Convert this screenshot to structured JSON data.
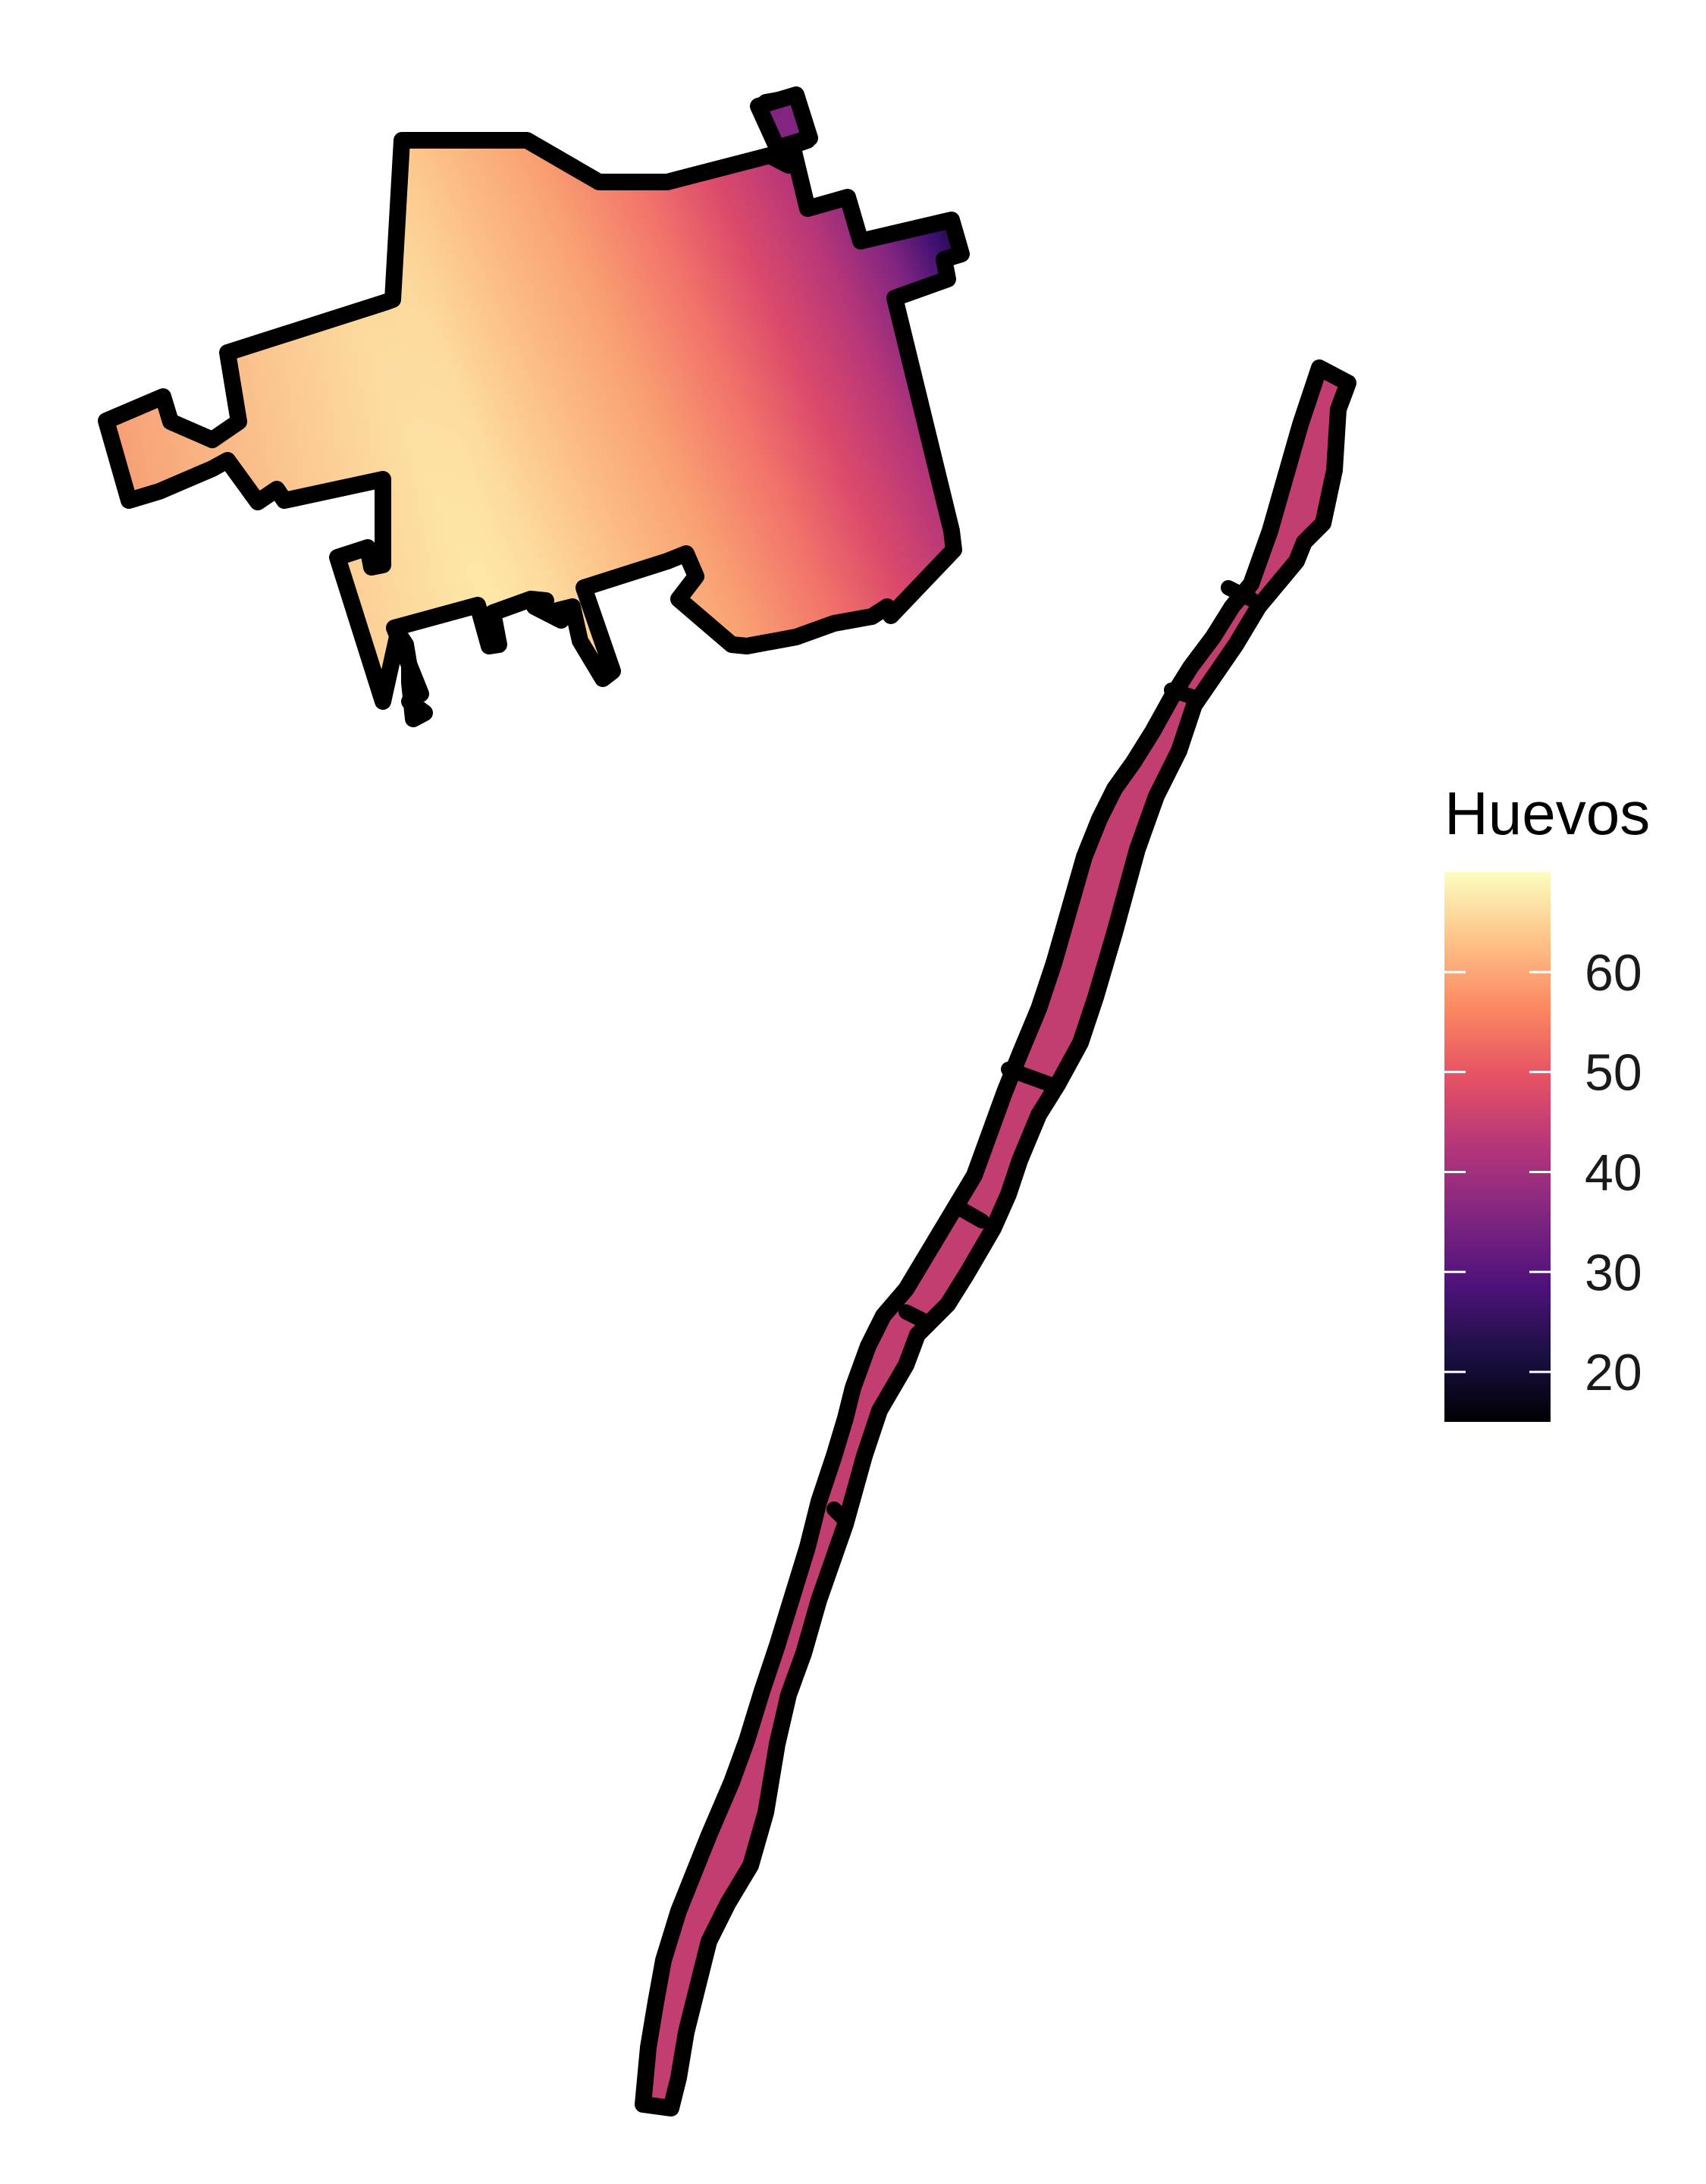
{
  "legend": {
    "title": "Huevos",
    "ticks": [
      {
        "value": 20,
        "label": "20"
      },
      {
        "value": 30,
        "label": "30"
      },
      {
        "value": 40,
        "label": "40"
      },
      {
        "value": 50,
        "label": "50"
      },
      {
        "value": 60,
        "label": "60"
      }
    ],
    "range": [
      15,
      70
    ],
    "palette": "magma",
    "colors": [
      "#000004",
      "#1c1044",
      "#4f127b",
      "#812581",
      "#b5367a",
      "#e55064",
      "#fb8761",
      "#fec287",
      "#fcfdbf"
    ]
  },
  "regions": [
    {
      "name": "large-polygon",
      "fill": "gradient"
    },
    {
      "name": "strip",
      "fill": "#c23d70",
      "value": 45
    }
  ]
}
